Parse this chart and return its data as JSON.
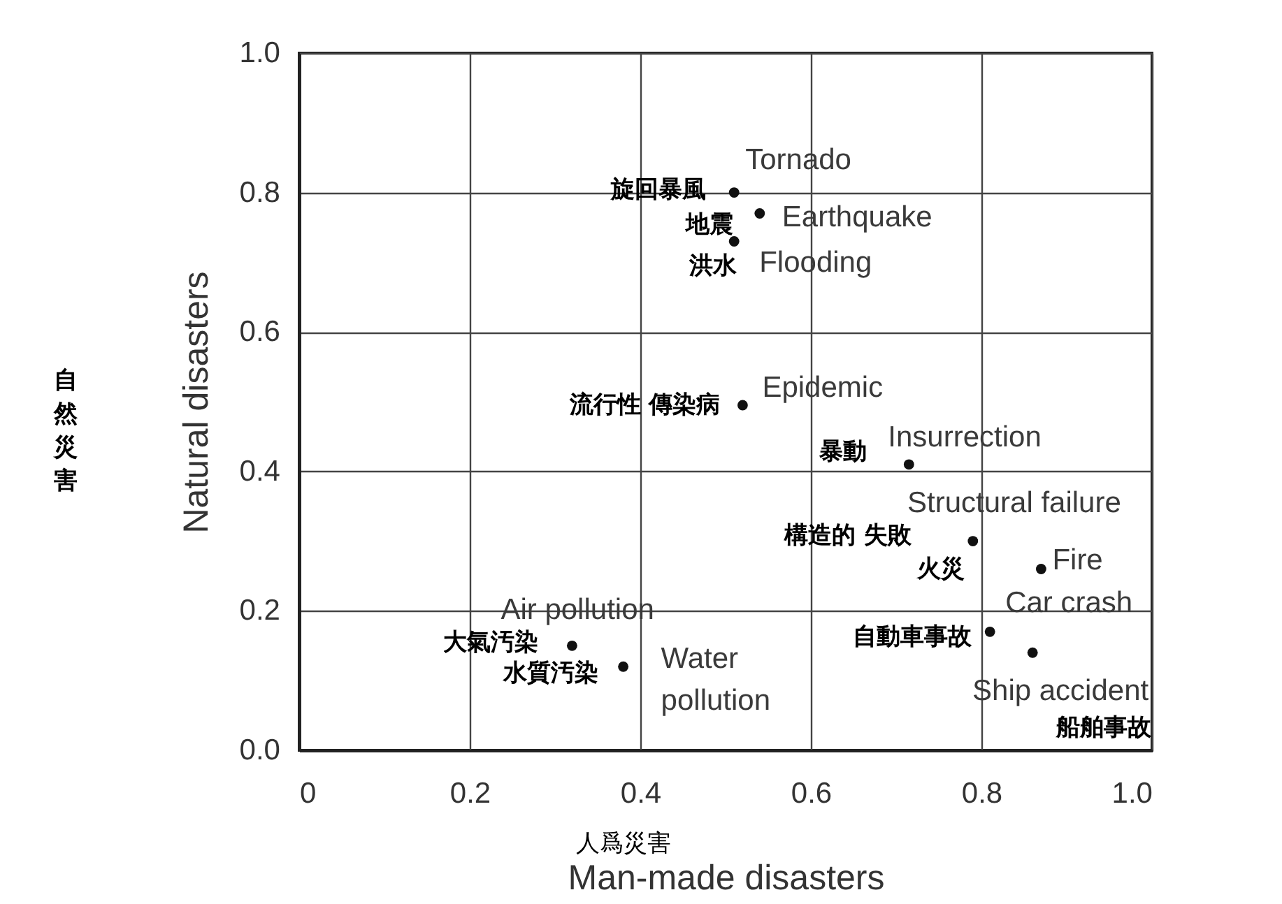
{
  "chart_data": {
    "type": "scatter",
    "xlabel": "Man-made disasters",
    "ylabel": "Natural disasters",
    "x": [
      0.51,
      0.54,
      0.51,
      0.52,
      0.715,
      0.79,
      0.87,
      0.81,
      0.86,
      0.32,
      0.38
    ],
    "series": [
      {
        "color": "#111111",
        "values": [
          0.8,
          0.77,
          0.73,
          0.495,
          0.41,
          0.3,
          0.26,
          0.17,
          0.14,
          0.15,
          0.12
        ]
      }
    ],
    "marker": "circle",
    "grid": true,
    "xlim": [
      0,
      1
    ],
    "ylim": [
      0,
      1
    ],
    "xticks": [
      0,
      0.2,
      0.4,
      0.6,
      0.8,
      {
        "value": 1,
        "label": "1.0"
      }
    ],
    "yticks": [
      {
        "value": 0,
        "label": "0.0"
      },
      0.2,
      0.4,
      0.6,
      0.8,
      {
        "value": 1,
        "label": "1.0"
      }
    ],
    "annotations": [
      {
        "text": "Tornado",
        "x": 0.51,
        "y": 0.8
      },
      {
        "text": "旋回暴風",
        "x": 0.51,
        "y": 0.8
      },
      {
        "text": "Earthquake",
        "x": 0.54,
        "y": 0.77
      },
      {
        "text": "地震",
        "x": 0.54,
        "y": 0.77
      },
      {
        "text": "Flooding",
        "x": 0.51,
        "y": 0.73
      },
      {
        "text": "洪水",
        "x": 0.51,
        "y": 0.73
      },
      {
        "text": "Epidemic",
        "x": 0.52,
        "y": 0.495
      },
      {
        "text": "流行性 傳染病",
        "x": 0.52,
        "y": 0.495
      },
      {
        "text": "Insurrection",
        "x": 0.715,
        "y": 0.41
      },
      {
        "text": "暴動",
        "x": 0.715,
        "y": 0.41
      },
      {
        "text": "Structural failure",
        "x": 0.79,
        "y": 0.3
      },
      {
        "text": "構造的 失敗",
        "x": 0.79,
        "y": 0.3
      },
      {
        "text": "Fire",
        "x": 0.87,
        "y": 0.26
      },
      {
        "text": "火災",
        "x": 0.79,
        "y": 0.3
      },
      {
        "text": "Car crash",
        "x": 0.81,
        "y": 0.17
      },
      {
        "text": "自動車事故",
        "x": 0.81,
        "y": 0.17
      },
      {
        "text": "Ship accident",
        "x": 0.86,
        "y": 0.14
      },
      {
        "text": "船舶事故",
        "x": 0.86,
        "y": 0.14
      },
      {
        "text": "Air pollution",
        "x": 0.32,
        "y": 0.15
      },
      {
        "text": "大氣汚染",
        "x": 0.32,
        "y": 0.15
      },
      {
        "text": "Water\npollution",
        "x": 0.38,
        "y": 0.12
      },
      {
        "text": "水質汚染",
        "x": 0.38,
        "y": 0.12
      },
      "人爲災害",
      "自然災害"
    ]
  }
}
